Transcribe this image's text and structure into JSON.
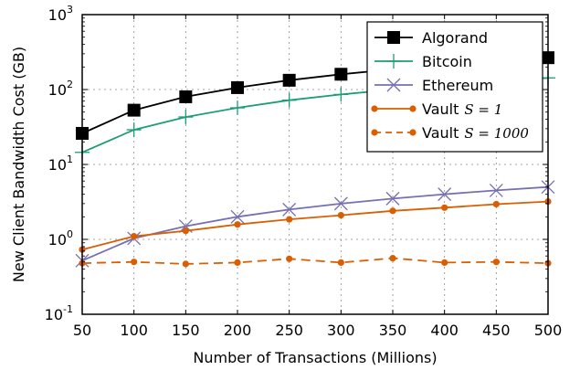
{
  "chart_data": {
    "type": "line",
    "title": "",
    "xlabel": "Number of Transactions (Millions)",
    "ylabel": "New Client Bandwidth Cost (GB)",
    "xlim": [
      50,
      500
    ],
    "ylim": [
      0.1,
      1000
    ],
    "yscale": "log",
    "grid": true,
    "legend_position": "top-right",
    "x": [
      50,
      100,
      150,
      200,
      250,
      300,
      350,
      400,
      450,
      500
    ],
    "x_tick_labels": [
      "50",
      "100",
      "150",
      "200",
      "250",
      "300",
      "350",
      "400",
      "450",
      "500"
    ],
    "y_ticks": [
      {
        "value": 0.1,
        "base": "10",
        "exp": "-1"
      },
      {
        "value": 1,
        "base": "10",
        "exp": "0"
      },
      {
        "value": 10,
        "base": "10",
        "exp": "1"
      },
      {
        "value": 100,
        "base": "10",
        "exp": "2"
      },
      {
        "value": 1000,
        "base": "10",
        "exp": "3"
      }
    ],
    "series": [
      {
        "name": "Algorand",
        "var": "",
        "color": "#000000",
        "marker": "square",
        "dash": "",
        "values": [
          26,
          53,
          80,
          106,
          133,
          160,
          186,
          213,
          240,
          266
        ]
      },
      {
        "name": "Bitcoin",
        "var": "",
        "color": "#1b9e77",
        "marker": "plus",
        "dash": "",
        "values": [
          14.5,
          29,
          43,
          57,
          72,
          86,
          100,
          115,
          129,
          143
        ]
      },
      {
        "name": "Ethereum",
        "var": "",
        "color": "#7570b3",
        "marker": "x",
        "dash": "",
        "values": [
          0.52,
          1.03,
          1.5,
          2.0,
          2.5,
          3.0,
          3.5,
          4.0,
          4.5,
          5.0
        ]
      },
      {
        "name": "Vault",
        "var": "S = 1",
        "color": "#d95f02",
        "marker": "circle",
        "dash": "",
        "values": [
          0.73,
          1.1,
          1.3,
          1.58,
          1.85,
          2.1,
          2.4,
          2.65,
          2.95,
          3.2
        ]
      },
      {
        "name": "Vault",
        "var": "S = 1000",
        "color": "#d95f02",
        "marker": "circle",
        "dash": "10,6",
        "values": [
          0.48,
          0.5,
          0.47,
          0.49,
          0.55,
          0.49,
          0.56,
          0.49,
          0.5,
          0.48
        ]
      }
    ]
  }
}
